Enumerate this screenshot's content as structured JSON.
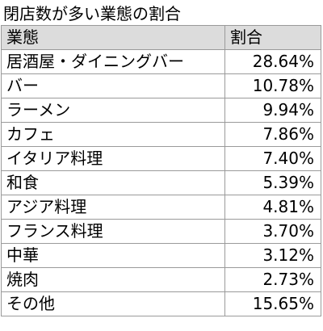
{
  "title": "閉店数が多い業態の割合",
  "table": {
    "headers": [
      "業態",
      "割合"
    ],
    "rows": [
      {
        "category": "居酒屋・ダイニングバー",
        "share": "28.64%"
      },
      {
        "category": "バー",
        "share": "10.78%"
      },
      {
        "category": "ラーメン",
        "share": "9.94%"
      },
      {
        "category": "カフェ",
        "share": "7.86%"
      },
      {
        "category": "イタリア料理",
        "share": "7.40%"
      },
      {
        "category": "和食",
        "share": "5.39%"
      },
      {
        "category": "アジア料理",
        "share": "4.81%"
      },
      {
        "category": "フランス料理",
        "share": "3.70%"
      },
      {
        "category": "中華",
        "share": "3.12%"
      },
      {
        "category": "焼肉",
        "share": "2.73%"
      },
      {
        "category": "その他",
        "share": "15.65%"
      }
    ]
  },
  "colors": {
    "header_background": "#dcdcdc",
    "border": "#9a9a9a",
    "text": "#000000"
  }
}
